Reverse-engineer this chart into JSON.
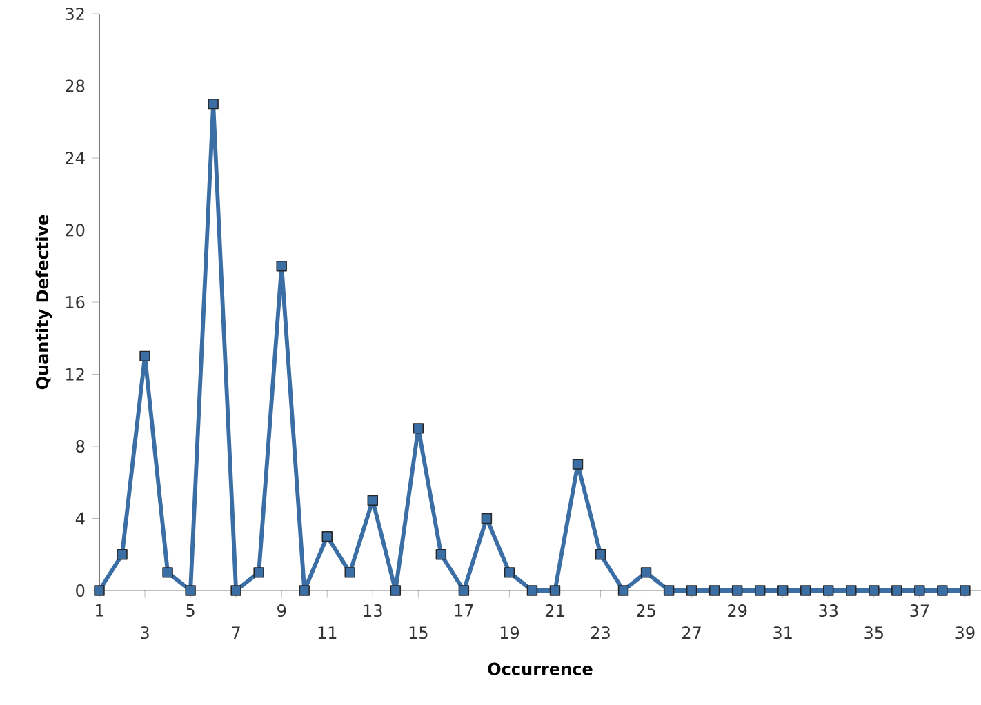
{
  "chart_data": {
    "type": "line",
    "xlabel": "Occurrence",
    "ylabel": "Quantity Defective",
    "categories": [
      "1",
      null,
      "3",
      null,
      "5",
      null,
      "7",
      null,
      "9",
      null,
      "11",
      null,
      "13",
      null,
      "15",
      null,
      "17",
      null,
      "19",
      null,
      "21",
      null,
      "23",
      null,
      "25",
      null,
      "27",
      null,
      "29",
      null,
      "31",
      null,
      "33",
      null,
      "35",
      null,
      "37",
      null,
      "39"
    ],
    "series": [
      {
        "color": "#3a6ea5",
        "values": [
          0,
          2,
          13,
          1,
          0,
          27,
          0,
          1,
          18,
          0,
          3,
          1,
          5,
          0,
          9,
          2,
          0,
          4,
          1,
          0,
          0,
          7,
          2,
          0,
          1,
          0,
          0,
          0,
          0,
          0,
          0,
          0,
          0,
          0,
          0,
          0,
          0,
          0,
          0
        ]
      }
    ],
    "ylim": [
      0,
      32
    ],
    "yticks": [
      0,
      4,
      8,
      12,
      16,
      20,
      24,
      28,
      32
    ],
    "grid": false,
    "marker": "square",
    "line_style": "solid"
  }
}
